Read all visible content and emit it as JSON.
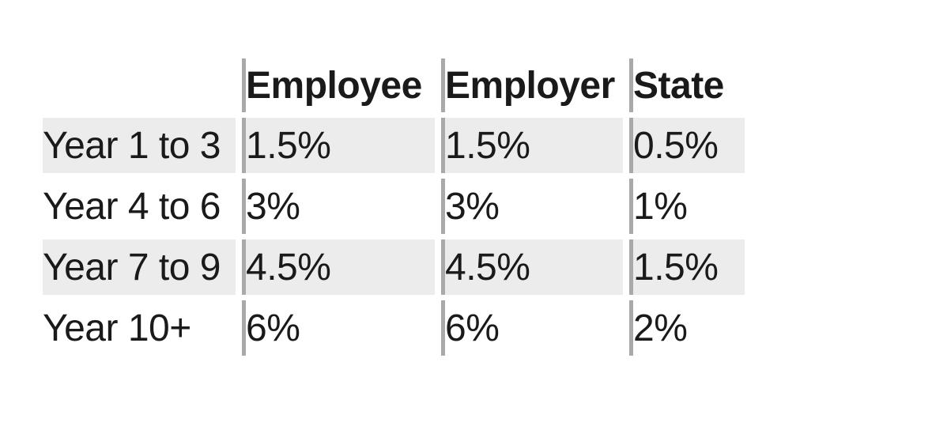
{
  "table": {
    "columns": {
      "corner": "",
      "col1": "Employee",
      "col2": "Employer",
      "col3": "State"
    },
    "rows": [
      {
        "label": "Year 1 to 3",
        "values": [
          "1.5%",
          "1.5%",
          "0.5%"
        ],
        "shaded": true
      },
      {
        "label": "Year 4 to 6",
        "values": [
          "3%",
          "3%",
          "1%"
        ],
        "shaded": false
      },
      {
        "label": "Year 7 to 9",
        "values": [
          "4.5%",
          "4.5%",
          "1.5%"
        ],
        "shaded": true
      },
      {
        "label": "Year 10+",
        "values": [
          "6%",
          "6%",
          "2%"
        ],
        "shaded": false
      }
    ],
    "colors": {
      "row_shade": "#ececec",
      "separator_bar": "#a9a9a9",
      "text": "#1a1a1a",
      "page_background": "#ffffff"
    }
  }
}
